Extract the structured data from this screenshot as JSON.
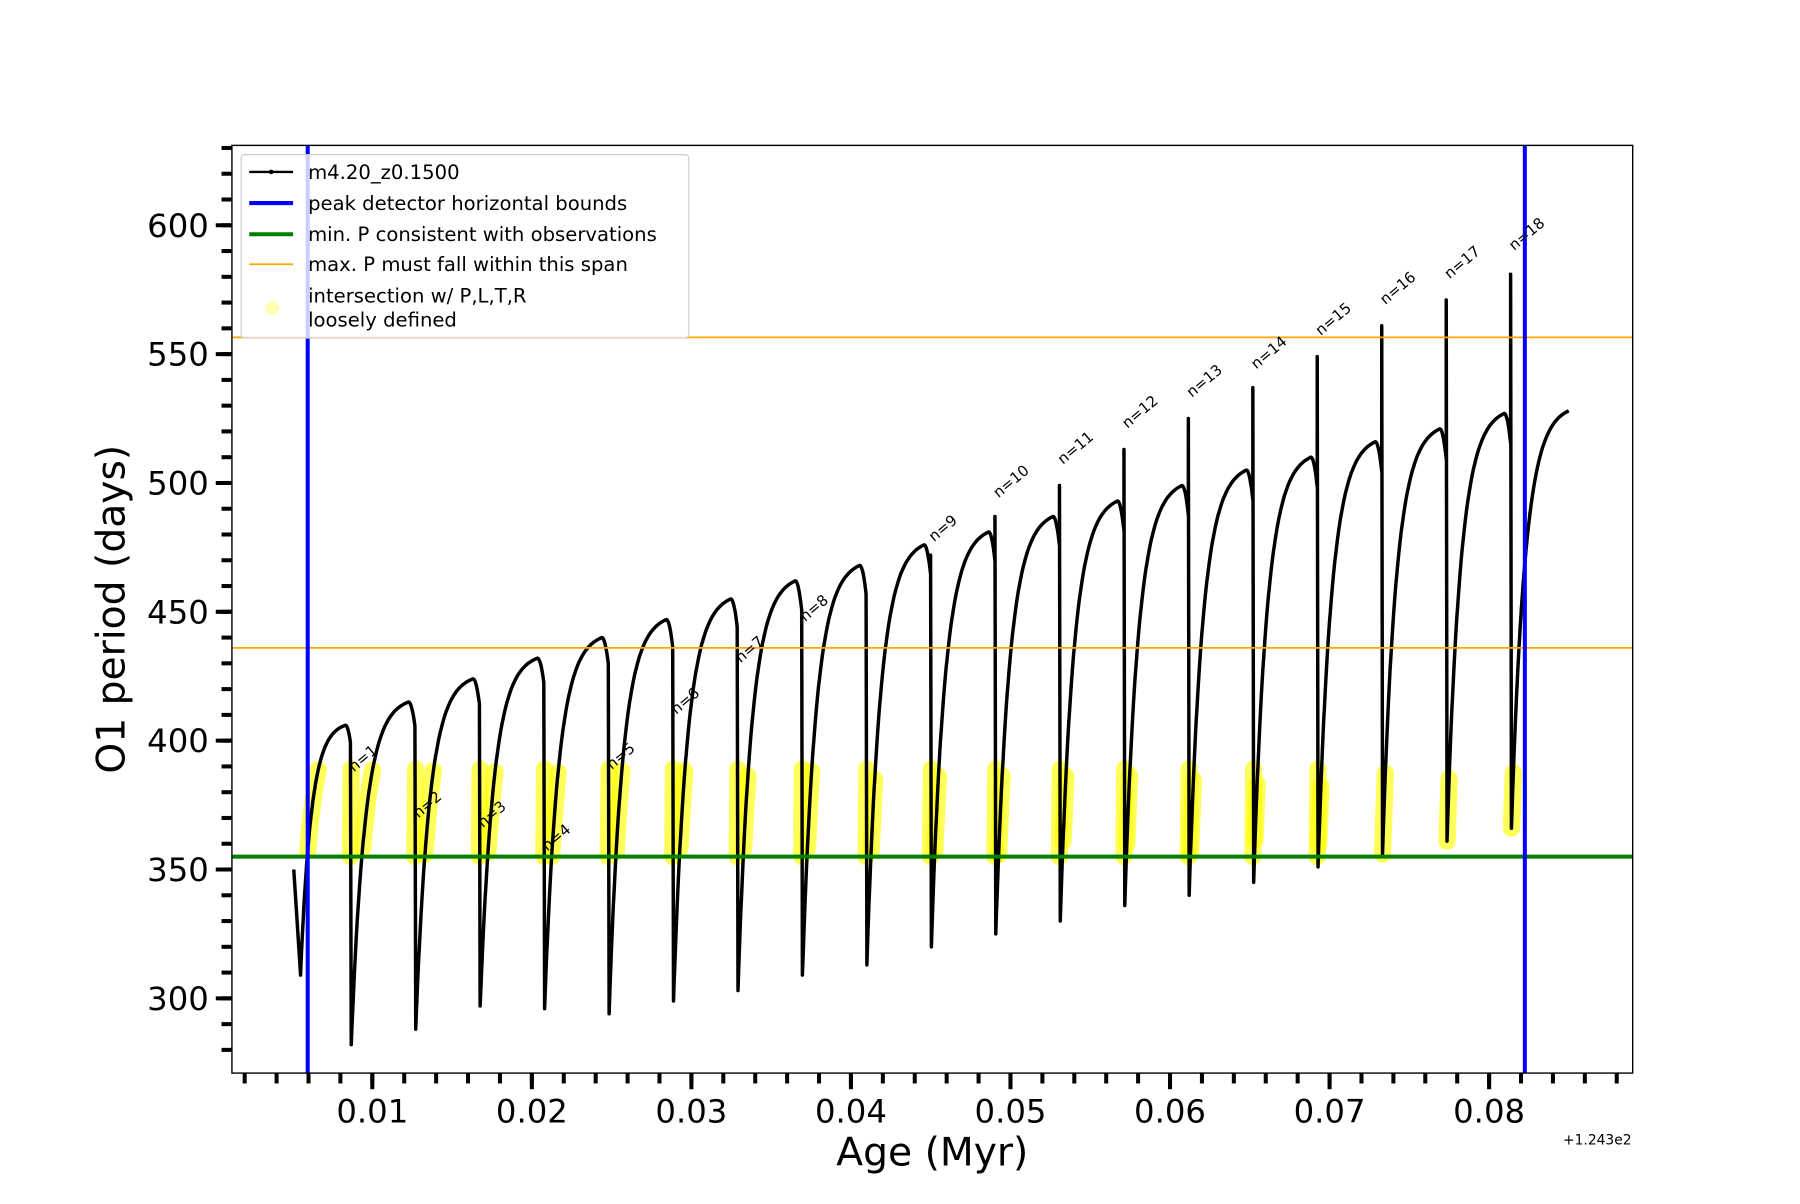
{
  "chart_data": {
    "type": "line",
    "xlabel": "Age (Myr)",
    "ylabel": "O1 period (days)",
    "x_offset_text": "+1.243e2",
    "xlim": [
      0.0012,
      0.089
    ],
    "ylim": [
      271,
      631
    ],
    "xticks": [
      0.01,
      0.02,
      0.03,
      0.04,
      0.05,
      0.06,
      0.07,
      0.08
    ],
    "xtick_labels": [
      "0.01",
      "0.02",
      "0.03",
      "0.04",
      "0.05",
      "0.06",
      "0.07",
      "0.08"
    ],
    "yticks": [
      300,
      350,
      400,
      450,
      500,
      550,
      600
    ],
    "ytick_labels": [
      "300",
      "350",
      "400",
      "450",
      "500",
      "550",
      "600"
    ],
    "x_minor_step": 0.002,
    "y_minor_step": 10,
    "grid": false,
    "legend_placement": "upper-left",
    "legend": [
      {
        "label": "m4.20_z0.1500",
        "style": "line-dot",
        "color": "#000000"
      },
      {
        "label": "peak detector horizontal bounds",
        "style": "line",
        "color": "#0000ff"
      },
      {
        "label": "min. P consistent with observations",
        "style": "line",
        "color": "#008000"
      },
      {
        "label": "max. P must fall within this span",
        "style": "thin-line",
        "color": "#ffa500"
      },
      {
        "label": "intersection w/ P,L,T,R",
        "label2": "loosely defined",
        "style": "circle",
        "color": "#ffff00"
      }
    ],
    "series": [
      {
        "name": "m4.20_z0.1500",
        "color": "#000000",
        "start": {
          "t": [
            0.00508,
            0.0055
          ],
          "P": [
            350,
            309
          ]
        },
        "pulse_first_age": 0.00863,
        "pulse_interval": 0.00404,
        "peaks_before_pulse": [
          400,
          409,
          418,
          426,
          434,
          441,
          449,
          456,
          462,
          470,
          475,
          481,
          487,
          493,
          499,
          504,
          510,
          515,
          521
        ],
        "spikes_at_pulse": [
          null,
          null,
          null,
          null,
          null,
          null,
          null,
          null,
          null,
          472,
          487,
          499,
          513,
          525,
          537,
          549,
          561,
          571,
          581
        ],
        "minima_after_pulse": [
          282,
          288,
          297,
          296,
          294,
          299,
          303,
          309,
          313,
          320,
          325,
          330,
          336,
          340,
          345,
          351,
          356,
          361,
          366
        ],
        "end": {
          "t": 0.085,
          "P": 526
        }
      }
    ],
    "vertical_lines": [
      {
        "x": 0.00595,
        "color": "#0000ff"
      },
      {
        "x": 0.08224,
        "color": "#0000ff"
      }
    ],
    "horizontal_lines": [
      {
        "y": 355,
        "color": "#008000"
      },
      {
        "y": 436,
        "color": "#ffa500"
      },
      {
        "y": 556.5,
        "color": "#ffa500"
      }
    ],
    "highlight": {
      "color": "#ffff00",
      "P_range": [
        355,
        389
      ]
    },
    "pulse_labels": [
      {
        "text": "n=1",
        "pulse": 1,
        "P": 387.7
      },
      {
        "text": "n=2",
        "pulse": 2,
        "P": 369.8
      },
      {
        "text": "n=3",
        "pulse": 3,
        "P": 366
      },
      {
        "text": "n=4",
        "pulse": 4,
        "P": 357
      },
      {
        "text": "n=5",
        "pulse": 5,
        "P": 388.6
      },
      {
        "text": "n=6",
        "pulse": 6,
        "P": 410
      },
      {
        "text": "n=7",
        "pulse": 7,
        "P": 430
      },
      {
        "text": "n=8",
        "pulse": 8,
        "P": 446
      },
      {
        "text": "n=9",
        "pulse": 10,
        "P": 477
      },
      {
        "text": "n=10",
        "pulse": 11,
        "P": 494
      },
      {
        "text": "n=11",
        "pulse": 12,
        "P": 507
      },
      {
        "text": "n=12",
        "pulse": 13,
        "P": 521
      },
      {
        "text": "n=13",
        "pulse": 14,
        "P": 533
      },
      {
        "text": "n=14",
        "pulse": 15,
        "P": 544
      },
      {
        "text": "n=15",
        "pulse": 16,
        "P": 557
      },
      {
        "text": "n=16",
        "pulse": 17,
        "P": 569
      },
      {
        "text": "n=17",
        "pulse": 18,
        "P": 579
      },
      {
        "text": "n=18",
        "pulse": 19,
        "P": 590
      }
    ]
  }
}
